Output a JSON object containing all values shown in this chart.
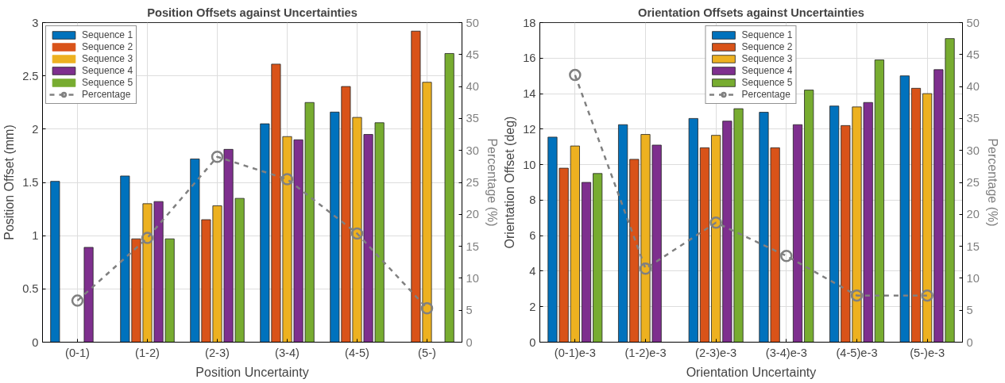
{
  "chart_data": [
    {
      "type": "bar",
      "title": "Position Offsets against Uncertainties",
      "xlabel": "Position Uncertainty",
      "ylabel": "Position Offset (mm)",
      "y2label": "Percentage (%)",
      "categories": [
        "(0-1)",
        "(1-2)",
        "(2-3)",
        "(3-4)",
        "(4-5)",
        "(5-)"
      ],
      "ylim": [
        0,
        3
      ],
      "yticks": [
        0,
        0.5,
        1,
        1.5,
        2,
        2.5,
        3
      ],
      "y2lim": [
        0,
        50
      ],
      "y2ticks": [
        0,
        5,
        10,
        15,
        20,
        25,
        30,
        35,
        40,
        45,
        50
      ],
      "grid": true,
      "legend": "top left",
      "series": [
        {
          "name": "Sequence 1",
          "color": "#0072bd",
          "values": [
            1.51,
            1.56,
            1.72,
            2.05,
            2.16,
            0
          ]
        },
        {
          "name": "Sequence 2",
          "color": "#d95319",
          "values": [
            0,
            0.97,
            1.15,
            2.61,
            2.4,
            2.92
          ]
        },
        {
          "name": "Sequence 3",
          "color": "#edb120",
          "values": [
            0,
            1.3,
            1.28,
            1.93,
            2.11,
            2.44
          ]
        },
        {
          "name": "Sequence 4",
          "color": "#7e2f8e",
          "values": [
            0.89,
            1.32,
            1.81,
            1.9,
            1.95,
            0
          ]
        },
        {
          "name": "Sequence 5",
          "color": "#77ac30",
          "values": [
            0,
            0.97,
            1.35,
            2.25,
            2.06,
            2.71
          ]
        },
        {
          "name": "Percentage",
          "type": "line",
          "axis": "y2",
          "color": "#808080",
          "marker": "circle",
          "line_style": "dashed",
          "values": [
            6.5,
            16.3,
            29.0,
            25.5,
            17.0,
            5.3
          ]
        }
      ]
    },
    {
      "type": "bar",
      "title": "Orientation Offsets against Uncertainties",
      "xlabel": "Orientation Uncertainty",
      "ylabel": "Orientation Offset (deg)",
      "y2label": "Percentage (%)",
      "categories": [
        "(0-1)e-3",
        "(1-2)e-3",
        "(2-3)e-3",
        "(3-4)e-3",
        "(4-5)e-3",
        "(5-)e-3"
      ],
      "ylim": [
        0,
        18
      ],
      "yticks": [
        0,
        2,
        4,
        6,
        8,
        10,
        12,
        14,
        16,
        18
      ],
      "y2lim": [
        0,
        50
      ],
      "y2ticks": [
        0,
        5,
        10,
        15,
        20,
        25,
        30,
        35,
        40,
        45,
        50
      ],
      "grid": true,
      "legend": "top",
      "series": [
        {
          "name": "Sequence 1",
          "color": "#0072bd",
          "values": [
            11.55,
            12.25,
            12.6,
            12.95,
            13.3,
            15.0
          ]
        },
        {
          "name": "Sequence 2",
          "color": "#d95319",
          "values": [
            9.8,
            10.3,
            10.95,
            10.95,
            12.2,
            14.3
          ]
        },
        {
          "name": "Sequence 3",
          "color": "#edb120",
          "values": [
            11.05,
            11.7,
            11.65,
            0,
            13.25,
            14.0
          ]
        },
        {
          "name": "Sequence 4",
          "color": "#7e2f8e",
          "values": [
            9.0,
            11.1,
            12.45,
            12.25,
            13.5,
            15.35
          ]
        },
        {
          "name": "Sequence 5",
          "color": "#77ac30",
          "values": [
            9.5,
            0,
            13.15,
            14.2,
            15.9,
            17.1
          ]
        },
        {
          "name": "Percentage",
          "type": "line",
          "axis": "y2",
          "color": "#808080",
          "marker": "circle",
          "line_style": "dashed",
          "values": [
            41.8,
            11.5,
            18.7,
            13.5,
            7.3,
            7.3
          ]
        }
      ]
    }
  ]
}
